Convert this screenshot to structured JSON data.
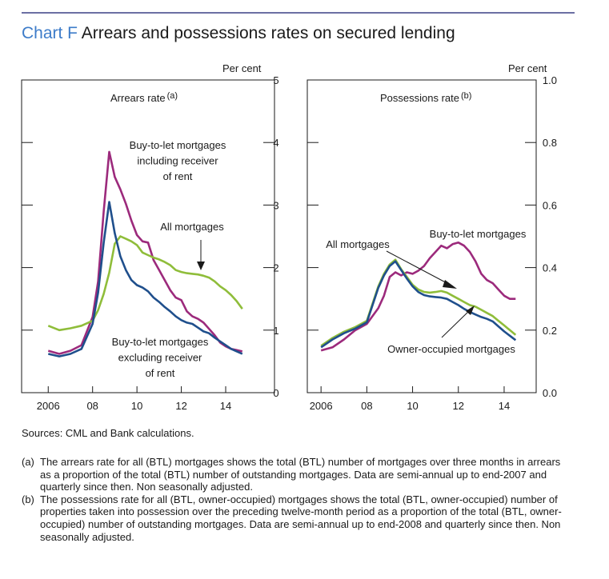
{
  "header": {
    "chart_label": "Chart F",
    "title": "Arrears and possessions rates on secured lending"
  },
  "sources": "Sources:  CML and Bank calculations.",
  "notes": [
    {
      "marker": "(a)",
      "text": "The arrears rate for all (BTL) mortgages shows the total (BTL) number of mortgages over three months in arrears as a proportion of the total (BTL) number of outstanding mortgages. Data are semi-annual up to end-2007 and quarterly since then.  Non seasonally adjusted."
    },
    {
      "marker": "(b)",
      "text": "The possessions rate for all (BTL, owner-occupied) mortgages shows the total (BTL, owner-occupied) number of properties taken into possession over the preceding twelve-month period as a proportion of the total (BTL, owner-occupied) number of outstanding mortgages.  Data are semi-annual up to end-2008 and quarterly since then. Non seasonally adjusted."
    }
  ],
  "colors": {
    "btl": "#9c2a7c",
    "all": "#8fbd3a",
    "btl_ex": "#1f4f8c",
    "owner": "#1f4f8c",
    "rule": "#6b6fa3",
    "title_label": "#3d7cc9"
  },
  "chart_data": [
    {
      "type": "line",
      "panel_title": "Arrears rate",
      "panel_title_sup": "(a)",
      "unit": "Per cent",
      "ylim": [
        0,
        5
      ],
      "yticks": [
        "0",
        "1",
        "2",
        "3",
        "4",
        "5"
      ],
      "xlim": [
        2004.8,
        2016.2
      ],
      "xticks": [
        {
          "x": 2006,
          "label": "2006"
        },
        {
          "x": 2008,
          "label": "08"
        },
        {
          "x": 2010,
          "label": "10"
        },
        {
          "x": 2012,
          "label": "12"
        },
        {
          "x": 2014,
          "label": "14"
        }
      ],
      "series": [
        {
          "key": "btl",
          "x": [
            2006,
            2006.5,
            2007,
            2007.5,
            2008,
            2008.25,
            2008.5,
            2008.75,
            2009,
            2009.25,
            2009.5,
            2009.75,
            2010,
            2010.25,
            2010.5,
            2010.75,
            2011,
            2011.25,
            2011.5,
            2011.75,
            2012,
            2012.25,
            2012.5,
            2012.75,
            2013,
            2013.25,
            2013.5,
            2013.75,
            2014,
            2014.25,
            2014.5,
            2014.75
          ],
          "values": [
            0.67,
            0.62,
            0.67,
            0.76,
            1.21,
            1.78,
            2.9,
            3.85,
            3.45,
            3.25,
            3.02,
            2.75,
            2.52,
            2.42,
            2.4,
            2.12,
            1.96,
            1.8,
            1.64,
            1.52,
            1.48,
            1.3,
            1.22,
            1.18,
            1.12,
            1.02,
            0.92,
            0.8,
            0.74,
            0.7,
            0.68,
            0.66
          ]
        },
        {
          "key": "all",
          "x": [
            2006,
            2006.5,
            2007,
            2007.5,
            2008,
            2008.25,
            2008.5,
            2008.75,
            2009,
            2009.25,
            2009.5,
            2009.75,
            2010,
            2010.25,
            2010.5,
            2010.75,
            2011,
            2011.25,
            2011.5,
            2011.75,
            2012,
            2012.25,
            2012.5,
            2012.75,
            2013,
            2013.25,
            2013.5,
            2013.75,
            2014,
            2014.25,
            2014.5,
            2014.75
          ],
          "values": [
            1.07,
            1.0,
            1.03,
            1.07,
            1.15,
            1.32,
            1.58,
            1.92,
            2.38,
            2.5,
            2.46,
            2.42,
            2.36,
            2.24,
            2.2,
            2.16,
            2.13,
            2.09,
            2.04,
            1.96,
            1.93,
            1.91,
            1.9,
            1.89,
            1.87,
            1.84,
            1.78,
            1.7,
            1.64,
            1.56,
            1.46,
            1.34
          ]
        },
        {
          "key": "btl_ex",
          "x": [
            2006,
            2006.5,
            2007,
            2007.5,
            2008,
            2008.25,
            2008.5,
            2008.75,
            2009,
            2009.25,
            2009.5,
            2009.75,
            2010,
            2010.25,
            2010.5,
            2010.75,
            2011,
            2011.25,
            2011.5,
            2011.75,
            2012,
            2012.25,
            2012.5,
            2012.75,
            2013,
            2013.25,
            2013.5,
            2013.75,
            2014,
            2014.25,
            2014.5,
            2014.75
          ],
          "values": [
            0.62,
            0.58,
            0.62,
            0.7,
            1.1,
            1.6,
            2.4,
            3.05,
            2.55,
            2.18,
            1.96,
            1.8,
            1.72,
            1.68,
            1.62,
            1.52,
            1.45,
            1.37,
            1.3,
            1.22,
            1.16,
            1.12,
            1.1,
            1.04,
            0.98,
            0.95,
            0.88,
            0.82,
            0.76,
            0.7,
            0.66,
            0.62
          ]
        }
      ],
      "annotations": [
        {
          "text_lines": [
            "Buy-to-let mortgages",
            "including receiver",
            "of rent"
          ],
          "series": "btl"
        },
        {
          "text_lines": [
            "All mortgages"
          ],
          "series": "all"
        },
        {
          "text_lines": [
            "Buy-to-let mortgages",
            "excluding receiver",
            "of rent"
          ],
          "series": "btl_ex"
        }
      ]
    },
    {
      "type": "line",
      "panel_title": "Possessions rate",
      "panel_title_sup": "(b)",
      "unit": "Per cent",
      "ylim": [
        0,
        1.0
      ],
      "yticks": [
        "0.0",
        "0.2",
        "0.4",
        "0.6",
        "0.8",
        "1.0"
      ],
      "xlim": [
        2005.4,
        2015.4
      ],
      "xticks": [
        {
          "x": 2006,
          "label": "2006"
        },
        {
          "x": 2008,
          "label": "08"
        },
        {
          "x": 2010,
          "label": "10"
        },
        {
          "x": 2012,
          "label": "12"
        },
        {
          "x": 2014,
          "label": "14"
        }
      ],
      "series": [
        {
          "key": "btl",
          "x": [
            2006,
            2006.5,
            2007,
            2007.5,
            2008,
            2008.5,
            2008.75,
            2009,
            2009.25,
            2009.5,
            2009.75,
            2010,
            2010.25,
            2010.5,
            2010.75,
            2011,
            2011.25,
            2011.5,
            2011.75,
            2012,
            2012.25,
            2012.5,
            2012.75,
            2013,
            2013.25,
            2013.5,
            2013.75,
            2014,
            2014.25,
            2014.5
          ],
          "values": [
            0.135,
            0.145,
            0.17,
            0.2,
            0.22,
            0.27,
            0.31,
            0.37,
            0.385,
            0.375,
            0.385,
            0.38,
            0.39,
            0.405,
            0.43,
            0.45,
            0.47,
            0.462,
            0.475,
            0.48,
            0.47,
            0.45,
            0.42,
            0.38,
            0.36,
            0.35,
            0.33,
            0.31,
            0.3,
            0.3
          ]
        },
        {
          "key": "all",
          "x": [
            2006,
            2006.5,
            2007,
            2007.5,
            2008,
            2008.5,
            2008.75,
            2009,
            2009.25,
            2009.5,
            2009.75,
            2010,
            2010.25,
            2010.5,
            2010.75,
            2011,
            2011.25,
            2011.5,
            2011.75,
            2012,
            2012.25,
            2012.5,
            2012.75,
            2013,
            2013.25,
            2013.5,
            2013.75,
            2014,
            2014.25,
            2014.5
          ],
          "values": [
            0.15,
            0.175,
            0.195,
            0.21,
            0.23,
            0.34,
            0.38,
            0.41,
            0.425,
            0.395,
            0.37,
            0.345,
            0.33,
            0.322,
            0.32,
            0.322,
            0.325,
            0.32,
            0.31,
            0.3,
            0.29,
            0.28,
            0.275,
            0.265,
            0.255,
            0.245,
            0.23,
            0.215,
            0.2,
            0.185
          ]
        },
        {
          "key": "owner",
          "x": [
            2006,
            2006.5,
            2007,
            2007.5,
            2008,
            2008.5,
            2008.75,
            2009,
            2009.25,
            2009.5,
            2009.75,
            2010,
            2010.25,
            2010.5,
            2010.75,
            2011,
            2011.25,
            2011.5,
            2011.75,
            2012,
            2012.25,
            2012.5,
            2012.75,
            2013,
            2013.25,
            2013.5,
            2013.75,
            2014,
            2014.25,
            2014.5
          ],
          "values": [
            0.145,
            0.17,
            0.19,
            0.205,
            0.225,
            0.335,
            0.375,
            0.405,
            0.42,
            0.392,
            0.365,
            0.34,
            0.322,
            0.312,
            0.308,
            0.306,
            0.304,
            0.3,
            0.29,
            0.28,
            0.268,
            0.258,
            0.25,
            0.242,
            0.236,
            0.228,
            0.212,
            0.196,
            0.182,
            0.168
          ]
        }
      ],
      "annotations": [
        {
          "text_lines": [
            "Buy-to-let mortgages"
          ],
          "series": "btl"
        },
        {
          "text_lines": [
            "All mortgages"
          ],
          "series": "all"
        },
        {
          "text_lines": [
            "Owner-occupied mortgages"
          ],
          "series": "owner"
        }
      ]
    }
  ]
}
